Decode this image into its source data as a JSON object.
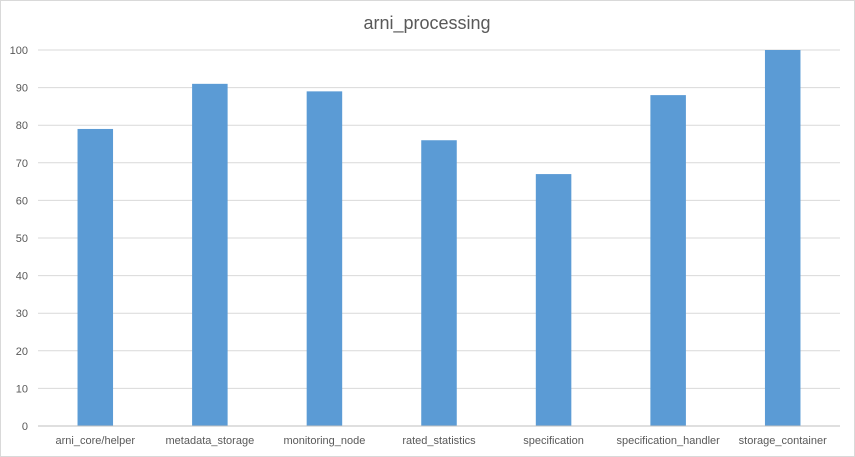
{
  "chart_data": {
    "type": "bar",
    "title": "arni_processing",
    "categories": [
      "arni_core/helper",
      "metadata_storage",
      "monitoring_node",
      "rated_statistics",
      "specification",
      "specification_handler",
      "storage_container"
    ],
    "values": [
      79,
      91,
      89,
      76,
      67,
      88,
      100
    ],
    "ylim": [
      0,
      100
    ],
    "yticks": [
      0,
      10,
      20,
      30,
      40,
      50,
      60,
      70,
      80,
      90,
      100
    ],
    "grid": true,
    "legend": "none",
    "bar_color": "#5b9bd5"
  }
}
